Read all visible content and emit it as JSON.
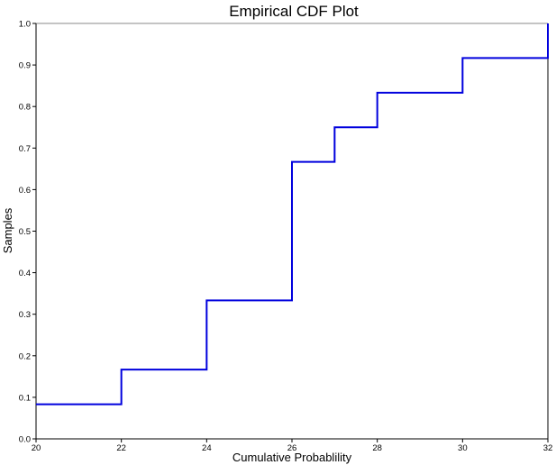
{
  "chart_data": {
    "type": "line",
    "subtype": "step-ecdf",
    "title": "Empirical CDF Plot",
    "xlabel": "Cumulative Probablility",
    "ylabel": "Samples",
    "x": [
      20,
      22,
      24,
      26,
      27,
      28,
      30,
      32
    ],
    "y": [
      0.0833,
      0.1667,
      0.3333,
      0.6667,
      0.75,
      0.8333,
      0.9167,
      1.0
    ],
    "n_samples": 12,
    "step_jumps": [
      {
        "x": 20,
        "to": 0.0833
      },
      {
        "x": 22,
        "to": 0.1667
      },
      {
        "x": 24,
        "to": 0.3333
      },
      {
        "x": 26,
        "to": 0.6667
      },
      {
        "x": 27,
        "to": 0.75
      },
      {
        "x": 28,
        "to": 0.8333
      },
      {
        "x": 30,
        "to": 0.9167
      },
      {
        "x": 32,
        "to": 1.0
      }
    ],
    "xlim": [
      20,
      32
    ],
    "ylim": [
      0.0,
      1.0
    ],
    "xticks": [
      "20",
      "22",
      "24",
      "26",
      "28",
      "30",
      "32"
    ],
    "yticks": [
      "0.0",
      "0.1",
      "0.2",
      "0.3",
      "0.4",
      "0.5",
      "0.6",
      "0.7",
      "0.8",
      "0.9",
      "1.0"
    ],
    "grid": false,
    "legend_position": "none",
    "colors": {
      "line": "#0000dd",
      "axis": "#000000",
      "frame_top": "#8a8a8a",
      "text": "#000000",
      "background": "#ffffff"
    }
  }
}
